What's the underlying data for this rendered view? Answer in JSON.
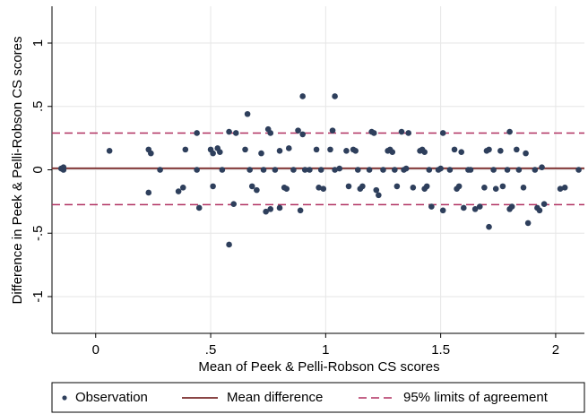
{
  "chart_data": {
    "type": "scatter",
    "xlabel": "Mean of Peek & Pelli-Robson CS scores",
    "ylabel": "Difference in Peek & Pelli-Robson CS scores",
    "xlim": [
      -0.19,
      2.125
    ],
    "ylim": [
      -1.29,
      1.29
    ],
    "xticks": [
      0,
      {
        "value": 0.5,
        "label": ".5"
      },
      1,
      1.5,
      2
    ],
    "yticks": [
      {
        "value": -1,
        "label": "-1"
      },
      {
        "value": -0.5,
        "label": "-.5"
      },
      0,
      {
        "value": 0.5,
        "label": ".5"
      },
      1
    ],
    "grid": true,
    "legend": "bottom",
    "series": [
      {
        "name": "Observation",
        "color": "#2e3f5c",
        "x": [
          -0.15,
          -0.14,
          -0.14,
          0.06,
          0.23,
          0.24,
          0.23,
          0.28,
          0.36,
          0.38,
          0.39,
          0.44,
          0.45,
          0.44,
          0.5,
          0.51,
          0.51,
          0.53,
          0.54,
          0.55,
          0.58,
          0.58,
          0.6,
          0.61,
          0.65,
          0.66,
          0.67,
          0.68,
          0.7,
          0.72,
          0.73,
          0.74,
          0.75,
          0.76,
          0.76,
          0.78,
          0.8,
          0.8,
          0.82,
          0.83,
          0.84,
          0.86,
          0.88,
          0.89,
          0.9,
          0.9,
          0.91,
          0.93,
          0.96,
          0.97,
          0.98,
          0.99,
          1.02,
          1.03,
          1.04,
          1.04,
          1.06,
          1.09,
          1.1,
          1.12,
          1.13,
          1.14,
          1.15,
          1.16,
          1.19,
          1.2,
          1.21,
          1.22,
          1.23,
          1.25,
          1.27,
          1.28,
          1.29,
          1.3,
          1.31,
          1.33,
          1.34,
          1.35,
          1.36,
          1.38,
          1.41,
          1.42,
          1.43,
          1.43,
          1.44,
          1.45,
          1.46,
          1.49,
          1.5,
          1.51,
          1.51,
          1.54,
          1.56,
          1.57,
          1.58,
          1.59,
          1.6,
          1.62,
          1.63,
          1.65,
          1.67,
          1.69,
          1.7,
          1.71,
          1.71,
          1.73,
          1.74,
          1.76,
          1.77,
          1.79,
          1.8,
          1.8,
          1.81,
          1.83,
          1.84,
          1.86,
          1.87,
          1.88,
          1.91,
          1.92,
          1.93,
          1.94,
          1.95,
          2.02,
          2.04,
          2.1
        ],
        "y": [
          0.01,
          0.0,
          0.02,
          0.15,
          0.16,
          0.13,
          -0.18,
          0.0,
          -0.17,
          -0.14,
          0.16,
          0.0,
          -0.3,
          0.29,
          0.16,
          0.13,
          -0.13,
          0.17,
          0.14,
          0.0,
          0.3,
          -0.59,
          -0.27,
          0.29,
          0.16,
          0.44,
          0.0,
          -0.13,
          -0.16,
          0.13,
          0.0,
          -0.33,
          0.32,
          0.29,
          -0.31,
          0.0,
          0.15,
          -0.3,
          -0.14,
          -0.15,
          0.17,
          0.0,
          0.31,
          -0.32,
          0.58,
          0.28,
          0.0,
          0.0,
          0.16,
          -0.14,
          0.0,
          -0.15,
          0.16,
          0.31,
          0.58,
          0.0,
          0.01,
          0.15,
          -0.13,
          0.16,
          0.15,
          0.0,
          -0.15,
          -0.13,
          0.0,
          0.3,
          0.29,
          -0.16,
          -0.2,
          0.0,
          0.15,
          0.16,
          0.14,
          0.0,
          -0.13,
          0.3,
          0.0,
          0.01,
          0.29,
          -0.14,
          0.15,
          0.16,
          0.14,
          -0.15,
          -0.13,
          0.0,
          -0.29,
          0.0,
          0.01,
          0.29,
          -0.32,
          0.0,
          0.16,
          -0.15,
          -0.13,
          0.14,
          -0.3,
          0.0,
          0.0,
          -0.31,
          -0.29,
          -0.14,
          0.15,
          0.16,
          -0.45,
          0.0,
          -0.15,
          0.15,
          -0.13,
          0.0,
          0.3,
          -0.31,
          -0.29,
          0.16,
          0.0,
          -0.14,
          0.13,
          -0.42,
          0.0,
          -0.3,
          -0.32,
          0.02,
          -0.27,
          -0.15,
          -0.14,
          0.0
        ]
      },
      {
        "name": "Mean difference",
        "color": "#7a2b2b",
        "values": [
          0.012
        ]
      },
      {
        "name": "95% limits of agreement",
        "color": "#b03060",
        "values": [
          0.29,
          -0.275
        ]
      }
    ]
  }
}
